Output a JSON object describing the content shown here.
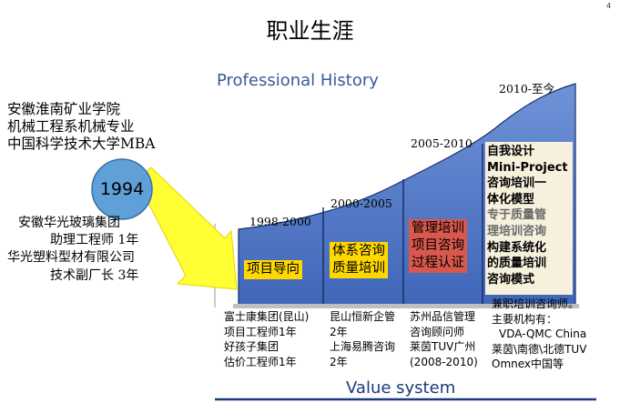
{
  "page_number": "4",
  "title": "职业生涯",
  "subtitle": "Professional History",
  "footer": "Value system",
  "education": [
    "安徽淮南矿业学院",
    "机械工程系机械专业",
    "中国科学技术大学MBA"
  ],
  "start_year": "1994",
  "early_career": [
    "安徽华光玻璃集团",
    "助理工程师 1年",
    "华光塑料型材有限公司",
    "技术副厂长 3年"
  ],
  "periods": [
    {
      "years": "1998-2000",
      "box_lines": [
        "项目导向"
      ],
      "details": [
        "富士康集团(昆山)",
        "项目工程师1年",
        "好孩子集团",
        "估价工程师1年"
      ]
    },
    {
      "years": "2000-2005",
      "box_lines": [
        "体系咨询",
        "质量培训"
      ],
      "details": [
        "昆山恒新企管",
        "2年",
        "上海易腾咨询",
        "2年"
      ]
    },
    {
      "years": "2005-2010",
      "box_lines": [
        "管理培训",
        "项目咨询",
        "过程认证"
      ],
      "details": [
        "苏州品信管理",
        "咨询顾问师",
        "莱茵TUV广州",
        "(2008-2010)"
      ]
    },
    {
      "years": "2010-至今",
      "box_lines": [
        "自我设计",
        "Mini-Project",
        "咨询培训一",
        "体化模型",
        "专于质量管",
        "理培训咨询",
        "构建系统化",
        "的质量培训",
        "咨询模式"
      ],
      "details": [
        "兼职培训咨询师。",
        "主要机构有：",
        "VDA-QMC China",
        "莱茵\\南德\\北德TUV",
        "Omnex中国等"
      ]
    }
  ],
  "colors": {
    "step_fill": "#4a72c4",
    "step_stroke": "#1a2f6e",
    "arrow": "#ffff33",
    "circle": "#5fa0d8",
    "highlight_yellow": "#ffd800",
    "highlight_red": "#d9584b"
  }
}
